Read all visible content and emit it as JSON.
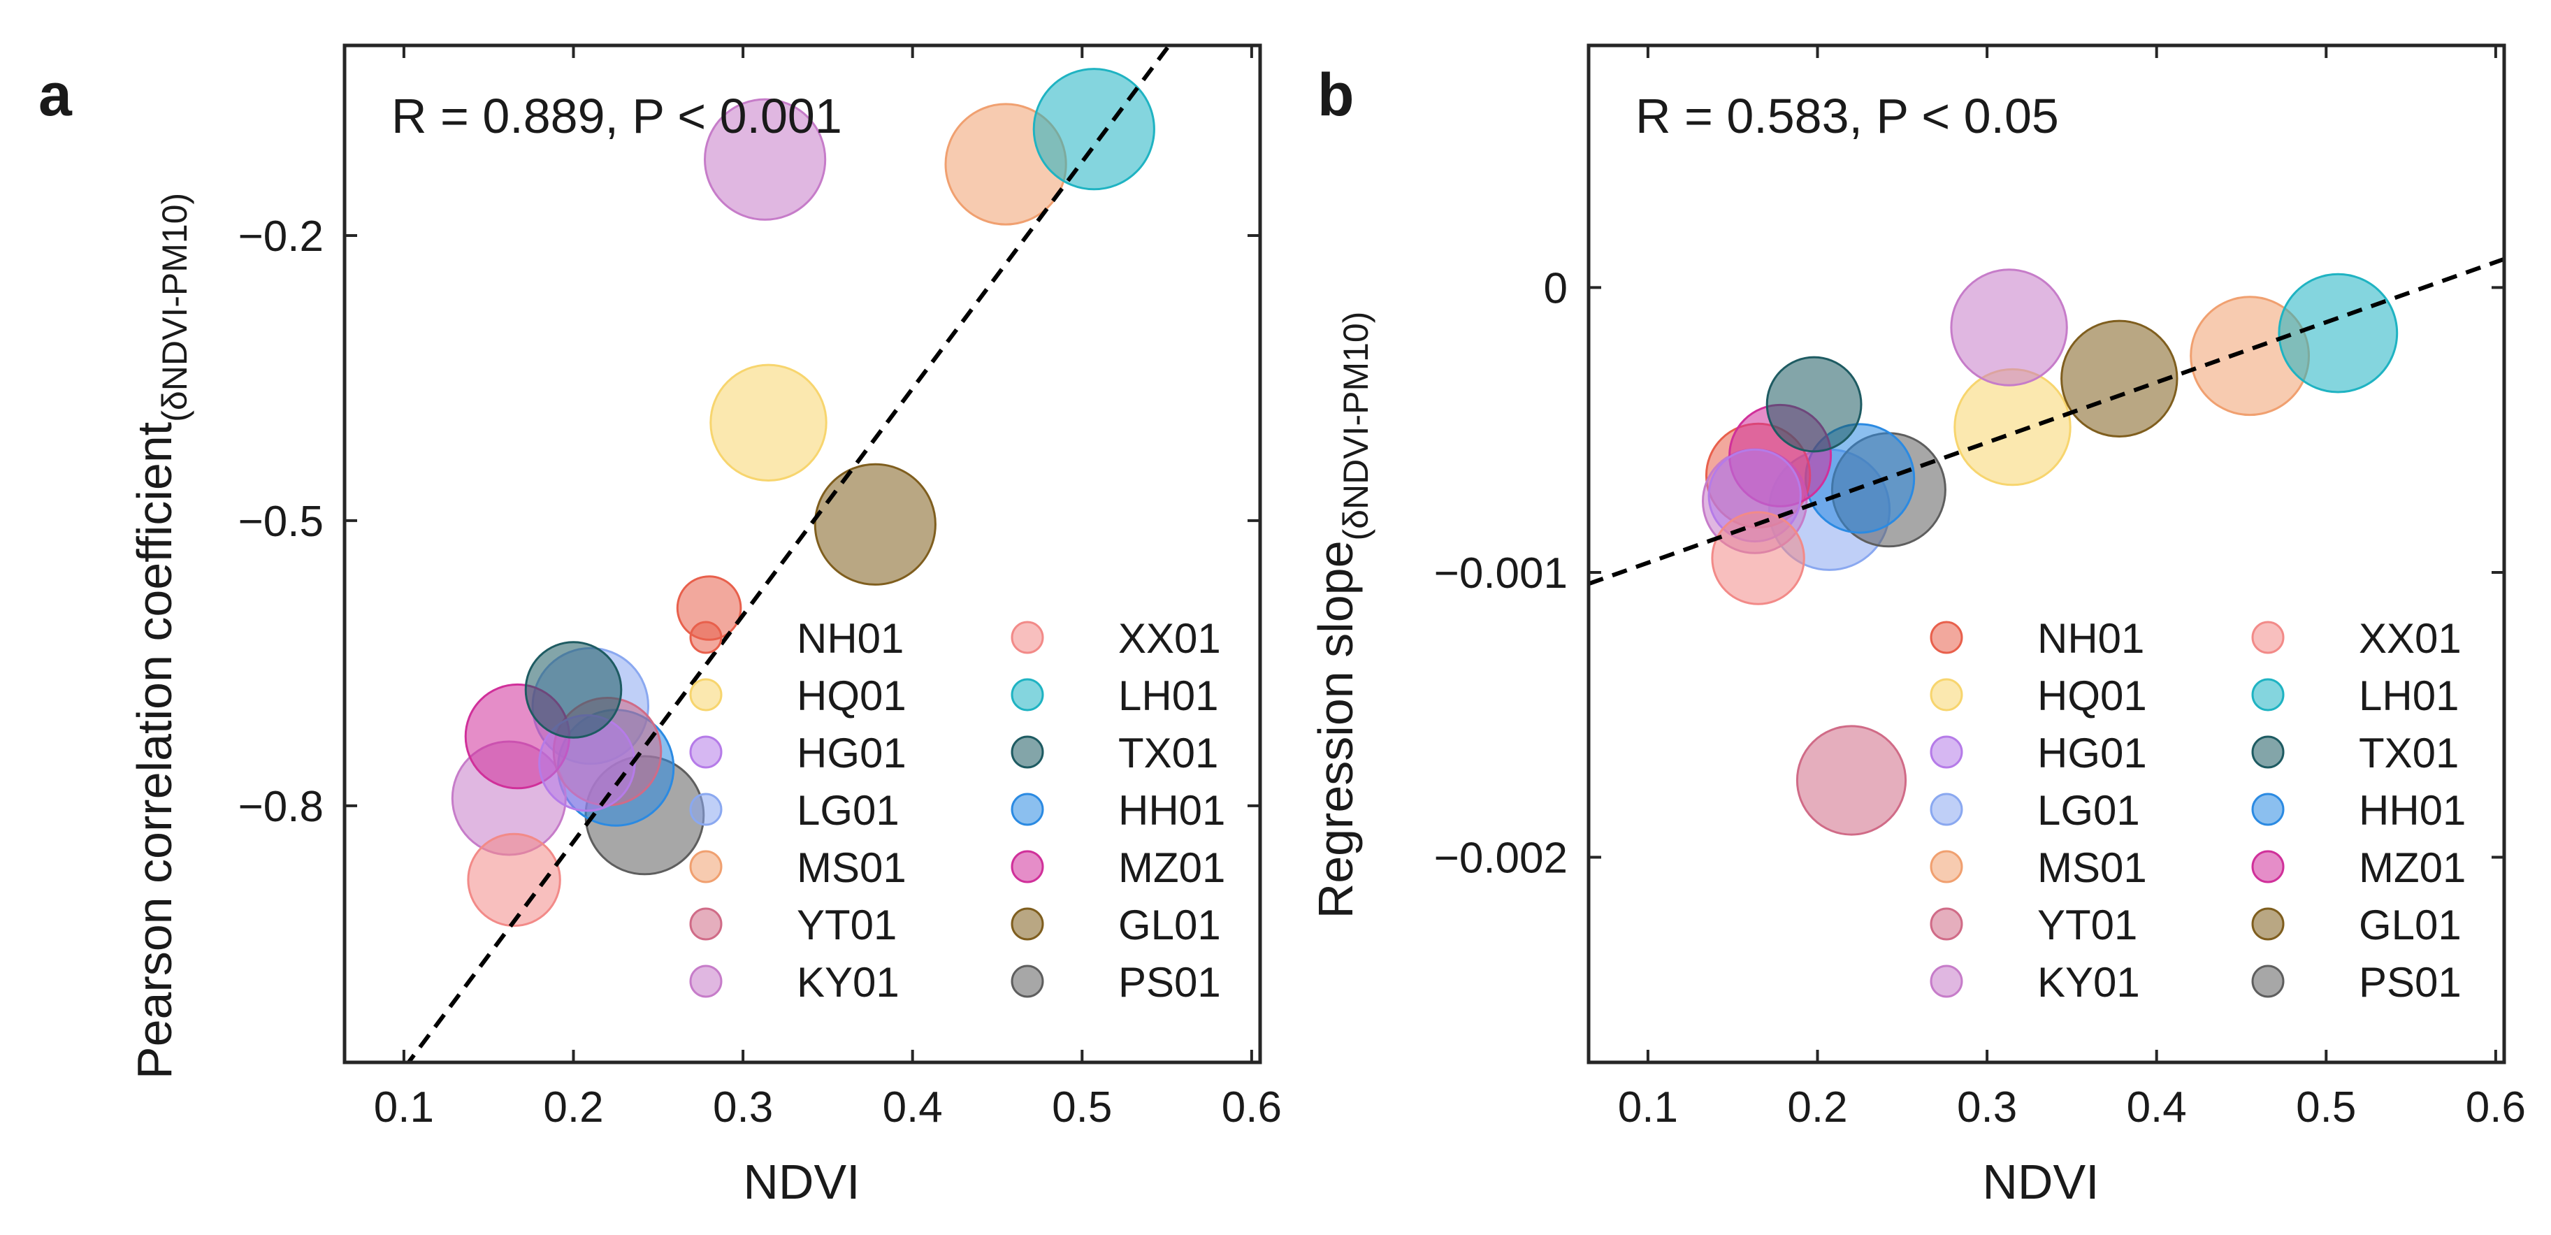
{
  "colors": {
    "NH01": "#e8604c",
    "HQ01": "#f7d56e",
    "HG01": "#b57be8",
    "LG01": "#8aa8f0",
    "MS01": "#f0a070",
    "YT01": "#d06b87",
    "KY01": "#c67cc9",
    "XX01": "#f28a88",
    "LH01": "#1fb3c2",
    "TX01": "#1e5b62",
    "HH01": "#2b8ae2",
    "MZ01": "#d0309a",
    "GL01": "#7f5e1e",
    "PS01": "#5e5e5e"
  },
  "chart_data": [
    {
      "type": "scatter",
      "panel_label": "a",
      "annotation": "R = 0.889, P < 0.001",
      "xlabel": "NDVI",
      "ylabel": "Pearson correlation coefficient",
      "ylabel_subscript": "(δNDVI-PM10)",
      "xlim": [
        0.065,
        0.605
      ],
      "ylim": [
        -1.07,
        -0.0
      ],
      "xticks": [
        0.1,
        0.2,
        0.3,
        0.4,
        0.5,
        0.6
      ],
      "xtick_labels": [
        "0.1",
        "0.2",
        "0.3",
        "0.4",
        "0.5",
        "0.6"
      ],
      "yticks": [
        -0.8,
        -0.5,
        -0.2
      ],
      "ytick_labels": [
        "−0.8",
        "−0.5",
        "−0.2"
      ],
      "fit_line": {
        "x": [
          0.065,
          0.605
        ],
        "y": [
          -1.16,
          0.128
        ]
      },
      "legend_position": "lower-right",
      "points": [
        {
          "station": "NH01",
          "x": 0.28,
          "y": -0.592,
          "size": 0.18
        },
        {
          "station": "HQ01",
          "x": 0.315,
          "y": -0.397,
          "size": 0.62
        },
        {
          "station": "HG01",
          "x": 0.208,
          "y": -0.755,
          "size": 0.45
        },
        {
          "station": "LG01",
          "x": 0.21,
          "y": -0.695,
          "size": 0.62
        },
        {
          "station": "MS01",
          "x": 0.455,
          "y": -0.125,
          "size": 0.66
        },
        {
          "station": "YT01",
          "x": 0.22,
          "y": -0.743,
          "size": 0.55
        },
        {
          "station": "KY01",
          "x": 0.313,
          "y": -0.12,
          "size": 0.66
        },
        {
          "station": "XX01",
          "x": 0.165,
          "y": -0.878,
          "size": 0.42
        },
        {
          "station": "LH01",
          "x": 0.507,
          "y": -0.088,
          "size": 0.66
        },
        {
          "station": "TX01",
          "x": 0.2,
          "y": -0.678,
          "size": 0.45
        },
        {
          "station": "HH01",
          "x": 0.225,
          "y": -0.76,
          "size": 0.62
        },
        {
          "station": "MZ01",
          "x": 0.167,
          "y": -0.727,
          "size": 0.52
        },
        {
          "station": "GL01",
          "x": 0.378,
          "y": -0.504,
          "size": 0.66
        },
        {
          "station": "PS01",
          "x": 0.242,
          "y": -0.81,
          "size": 0.64
        },
        {
          "station": "KY01",
          "x": 0.162,
          "y": -0.792,
          "size": 0.6
        }
      ]
    },
    {
      "type": "scatter",
      "panel_label": "b",
      "annotation": "R = 0.583, P < 0.05",
      "xlabel": "NDVI",
      "ylabel": "Regression slope",
      "ylabel_subscript": "(δNDVI-PM10)",
      "xlim": [
        0.065,
        0.605
      ],
      "ylim": [
        -0.00272,
        0.00085
      ],
      "xticks": [
        0.1,
        0.2,
        0.3,
        0.4,
        0.5,
        0.6
      ],
      "xtick_labels": [
        "0.1",
        "0.2",
        "0.3",
        "0.4",
        "0.5",
        "0.6"
      ],
      "yticks": [
        -0.002,
        -0.001,
        0.0
      ],
      "ytick_labels": [
        "−0.002",
        "−0.001",
        "0"
      ],
      "fit_line": {
        "x": [
          0.065,
          0.605
        ],
        "y": [
          -0.00104,
          0.0001
        ]
      },
      "legend_position": "lower-right",
      "points": [
        {
          "station": "NH01",
          "x": 0.165,
          "y": -0.00066,
          "size": 0.52
        },
        {
          "station": "HQ01",
          "x": 0.315,
          "y": -0.00049,
          "size": 0.62
        },
        {
          "station": "HG01",
          "x": 0.163,
          "y": -0.00073,
          "size": 0.42
        },
        {
          "station": "LG01",
          "x": 0.207,
          "y": -0.00078,
          "size": 0.66
        },
        {
          "station": "MS01",
          "x": 0.455,
          "y": -0.00024,
          "size": 0.64
        },
        {
          "station": "YT01",
          "x": 0.22,
          "y": -0.00173,
          "size": 0.56
        },
        {
          "station": "KY01",
          "x": 0.313,
          "y": -0.00014,
          "size": 0.62
        },
        {
          "station": "XX01",
          "x": 0.165,
          "y": -0.00095,
          "size": 0.42
        },
        {
          "station": "LH01",
          "x": 0.507,
          "y": -0.00016,
          "size": 0.64
        },
        {
          "station": "TX01",
          "x": 0.198,
          "y": -0.00041,
          "size": 0.44
        },
        {
          "station": "HH01",
          "x": 0.225,
          "y": -0.00067,
          "size": 0.56
        },
        {
          "station": "MZ01",
          "x": 0.178,
          "y": -0.00059,
          "size": 0.5
        },
        {
          "station": "GL01",
          "x": 0.378,
          "y": -0.00032,
          "size": 0.62
        },
        {
          "station": "PS01",
          "x": 0.242,
          "y": -0.00071,
          "size": 0.6
        },
        {
          "station": "KY01",
          "x": 0.163,
          "y": -0.00075,
          "size": 0.52
        }
      ]
    }
  ],
  "legend": {
    "col1": [
      "NH01",
      "HQ01",
      "HG01",
      "LG01",
      "MS01",
      "YT01",
      "KY01"
    ],
    "col2": [
      "XX01",
      "LH01",
      "TX01",
      "HH01",
      "MZ01",
      "GL01",
      "PS01"
    ]
  }
}
